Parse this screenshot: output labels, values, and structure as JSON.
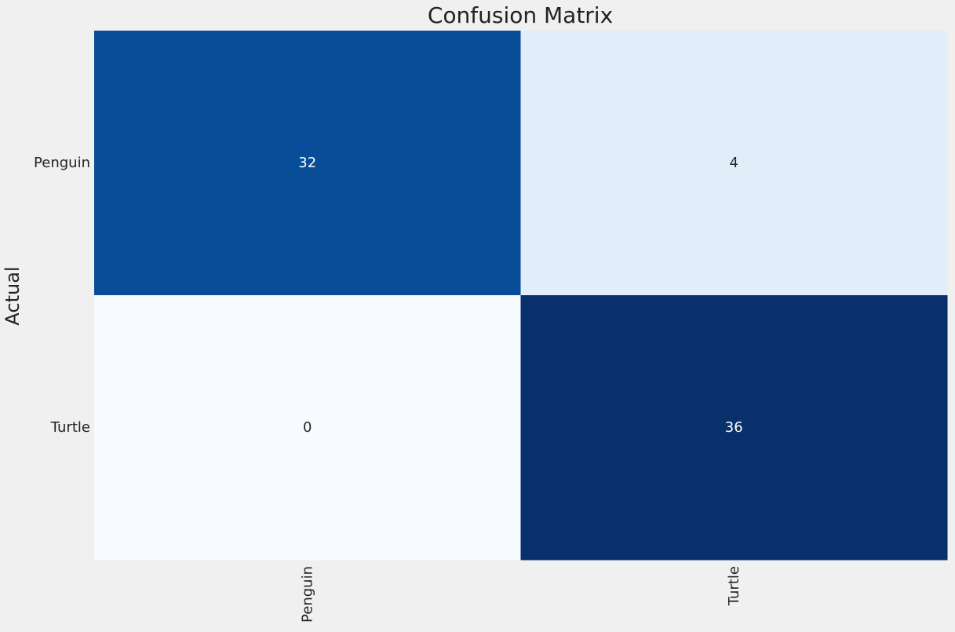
{
  "chart_data": {
    "type": "heatmap",
    "title": "Confusion Matrix",
    "ylabel": "Actual",
    "xlabel": "",
    "row_labels": [
      "Penguin",
      "Turtle"
    ],
    "col_labels": [
      "Penguin",
      "Turtle"
    ],
    "values": [
      [
        32,
        4
      ],
      [
        0,
        36
      ]
    ],
    "colormap": "Blues",
    "color_range": [
      0,
      36
    ],
    "annotation_light_color": "#ffffff",
    "annotation_dark_color": "#262626",
    "background_color": "#f0f0f0",
    "colorbar": false,
    "grid": false
  }
}
